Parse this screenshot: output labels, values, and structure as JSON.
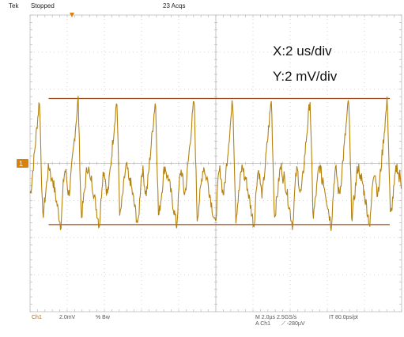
{
  "header": {
    "brand": "Tek",
    "status": "Stopped",
    "acquisitions": "23 Acqs"
  },
  "annotation": {
    "x_scale": "X:2 us/div",
    "y_scale": "Y:2 mV/div"
  },
  "channel_marker": "1",
  "footer": {
    "channel": "Ch1",
    "volts_per_div": "2.0mV",
    "bandwidth": "% Bw",
    "timebase": "M 2.0µs 2.5GS/s",
    "time_per_point": "IT 80.0ps/pt",
    "trigger_source": "A  Ch1",
    "trigger_level": "⟋  -280µV"
  },
  "colors": {
    "trace": "#b5820f",
    "reference_lines": "#9a4a1a",
    "grid": "#c9c9c9",
    "marker": "#d9800d"
  },
  "display": {
    "divisions_x": 10,
    "divisions_y": 8,
    "upper_level_div": 1.75,
    "lower_level_div": -1.65,
    "cursor_start_div": 0.5
  }
}
